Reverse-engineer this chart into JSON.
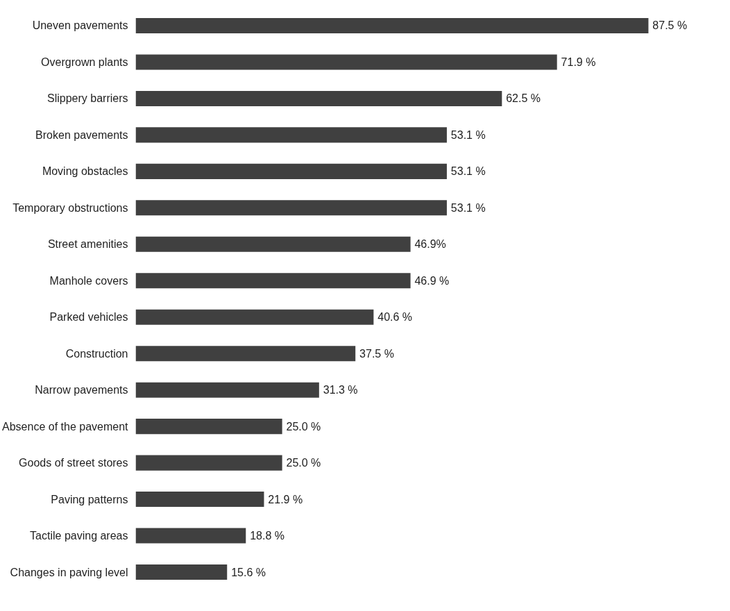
{
  "chart_data": {
    "type": "bar",
    "orientation": "horizontal",
    "categories": [
      "Uneven pavements",
      "Overgrown plants",
      "Slippery barriers",
      "Broken pavements",
      "Moving obstacles",
      "Temporary obstructions",
      "Street amenities",
      "Manhole covers",
      "Parked vehicles",
      "Construction",
      "Narrow pavements",
      "Absence of the pavement",
      "Goods of street stores",
      "Paving patterns",
      "Tactile paving areas",
      "Changes in paving level"
    ],
    "values": [
      87.5,
      71.9,
      62.5,
      53.1,
      53.1,
      53.1,
      46.9,
      46.9,
      40.6,
      37.5,
      31.3,
      25.0,
      25.0,
      21.9,
      18.8,
      15.6
    ],
    "value_labels": [
      "87.5 %",
      "71.9 %",
      "62.5 %",
      "53.1 %",
      "53.1 %",
      "53.1 %",
      "46.9%",
      "46.9 %",
      "40.6 %",
      "37.5 %",
      "31.3 %",
      "25.0 %",
      "25.0 %",
      "21.9 %",
      "18.8 %",
      "15.6 %"
    ],
    "color": "#404040"
  }
}
